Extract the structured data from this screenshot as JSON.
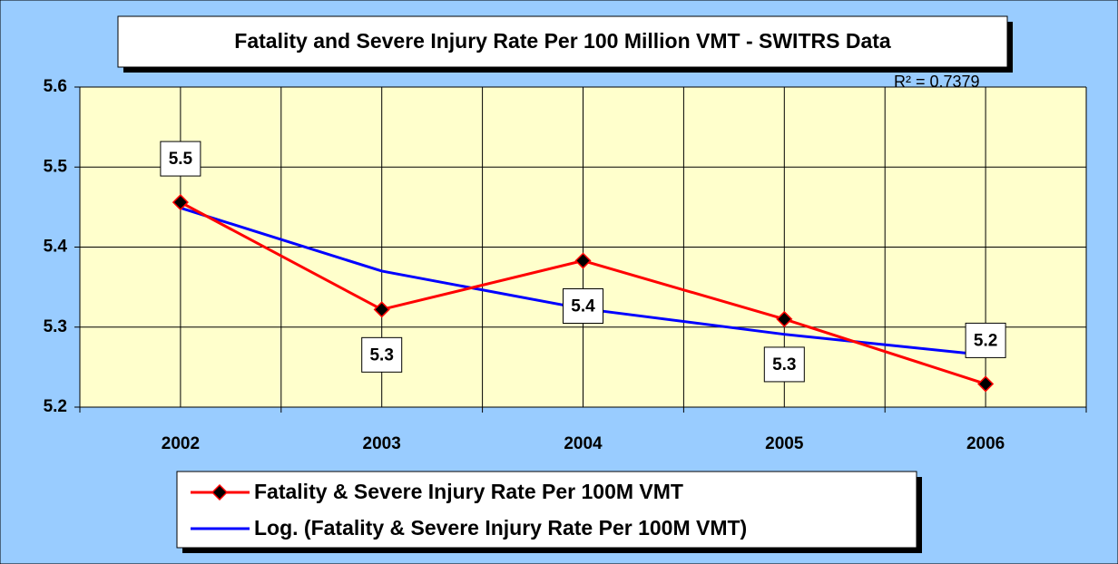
{
  "chart_data": {
    "type": "line",
    "title": "Fatality and Severe Injury Rate Per 100 Million VMT - SWITRS Data",
    "annotation": "R² = 0.7379",
    "categories": [
      "2002",
      "2003",
      "2004",
      "2005",
      "2006"
    ],
    "series": [
      {
        "name": "Fatality & Severe Injury Rate Per 100M VMT",
        "color": "#ff0000",
        "marker_color": "#000000",
        "values": [
          5.456,
          5.322,
          5.383,
          5.31,
          5.229
        ],
        "value_labels": [
          "5.5",
          "5.3",
          "5.4",
          "5.3",
          "5.2"
        ]
      },
      {
        "name": "Log. (Fatality & Severe Injury Rate Per 100M VMT)",
        "color": "#0000ff",
        "values": [
          5.449,
          5.37,
          5.323,
          5.291,
          5.265
        ]
      }
    ],
    "ylim": [
      5.2,
      5.6
    ],
    "yticks": [
      5.2,
      5.3,
      5.4,
      5.5,
      5.6
    ],
    "grid": true
  }
}
